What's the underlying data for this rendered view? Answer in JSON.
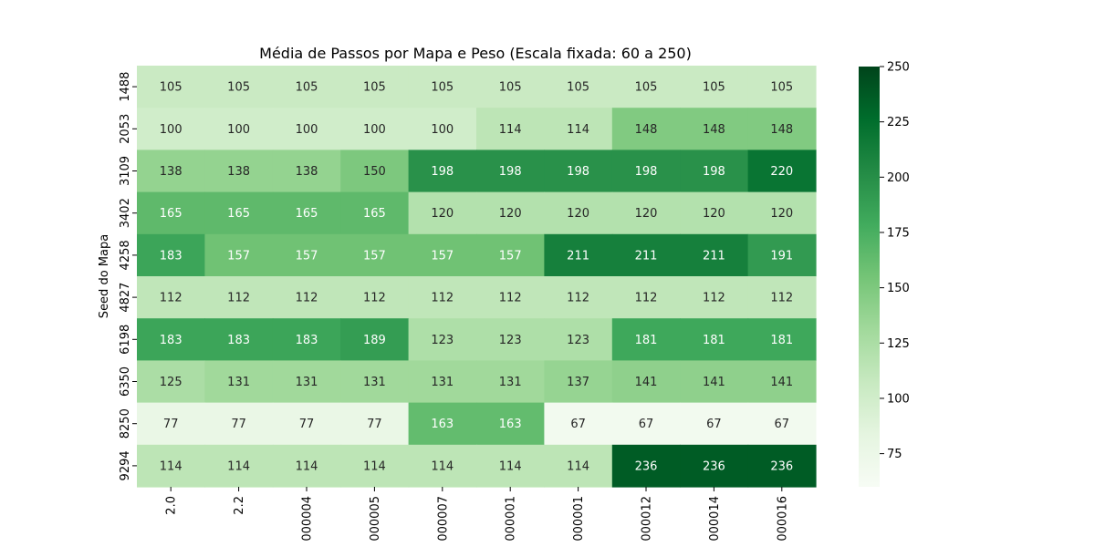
{
  "chart_data": {
    "type": "heatmap",
    "title": "Média de Passos por Mapa e Peso (Escala fixada: 60 a 250)",
    "xlabel": "",
    "ylabel": "Seed do Mapa",
    "x_categories": [
      "2.0",
      "2.2",
      "000004",
      "000005",
      "000007",
      "000001",
      "000001",
      "000012",
      "000014",
      "000016"
    ],
    "y_categories": [
      "1488",
      "2053",
      "3109",
      "3402",
      "4258",
      "4827",
      "6198",
      "6350",
      "8250",
      "9294"
    ],
    "values": [
      [
        105,
        105,
        105,
        105,
        105,
        105,
        105,
        105,
        105,
        105
      ],
      [
        100,
        100,
        100,
        100,
        100,
        114,
        114,
        148,
        148,
        148
      ],
      [
        138,
        138,
        138,
        150,
        198,
        198,
        198,
        198,
        198,
        220
      ],
      [
        165,
        165,
        165,
        165,
        120,
        120,
        120,
        120,
        120,
        120
      ],
      [
        183,
        157,
        157,
        157,
        157,
        157,
        211,
        211,
        211,
        191
      ],
      [
        112,
        112,
        112,
        112,
        112,
        112,
        112,
        112,
        112,
        112
      ],
      [
        183,
        183,
        183,
        189,
        123,
        123,
        123,
        181,
        181,
        181
      ],
      [
        125,
        131,
        131,
        131,
        131,
        131,
        137,
        141,
        141,
        141
      ],
      [
        77,
        77,
        77,
        77,
        163,
        163,
        67,
        67,
        67,
        67
      ],
      [
        114,
        114,
        114,
        114,
        114,
        114,
        114,
        236,
        236,
        236
      ]
    ],
    "color_range": [
      60,
      250
    ],
    "colormap": "Greens",
    "colorbar_ticks": [
      75,
      100,
      125,
      150,
      175,
      200,
      225,
      250
    ]
  }
}
